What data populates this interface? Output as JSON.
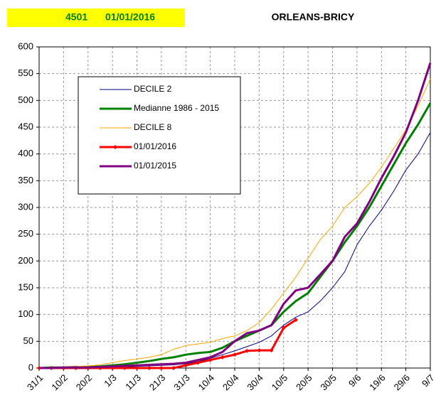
{
  "chart_data": {
    "type": "line",
    "station_code": "4501",
    "date": "01/01/2016",
    "title": "ORLEANS-BRICY",
    "categories": [
      "31/1",
      null,
      "10/2",
      null,
      "20/2",
      null,
      "1/3",
      null,
      "11/3",
      null,
      "21/3",
      null,
      "31/3",
      null,
      "10/4",
      null,
      "20/4",
      null,
      "30/4",
      null,
      "10/5",
      null,
      "20/5",
      null,
      "30/5",
      null,
      "9/6",
      null,
      "19/6",
      null,
      "29/6",
      null,
      "9/7"
    ],
    "series": [
      {
        "name": "DECILE 2",
        "color": "#000080",
        "linewidth": 1,
        "values": [
          0,
          0,
          0,
          1,
          1,
          1,
          2,
          2,
          3,
          4,
          5,
          6,
          8,
          12,
          18,
          25,
          32,
          40,
          48,
          60,
          80,
          95,
          105,
          125,
          150,
          180,
          230,
          265,
          295,
          330,
          370,
          400,
          440
        ]
      },
      {
        "name": "Medianne 1986 - 2015",
        "color": "#008000",
        "linewidth": 3,
        "values": [
          0,
          1,
          1,
          2,
          2,
          3,
          5,
          7,
          10,
          13,
          17,
          20,
          25,
          28,
          30,
          38,
          50,
          60,
          70,
          80,
          105,
          125,
          140,
          170,
          200,
          235,
          265,
          300,
          340,
          380,
          420,
          455,
          495
        ]
      },
      {
        "name": "DECILE 8",
        "color": "#FFA500",
        "linewidth": 1,
        "values": [
          0,
          1,
          2,
          3,
          4,
          6,
          10,
          14,
          17,
          20,
          25,
          35,
          42,
          45,
          48,
          55,
          60,
          70,
          85,
          110,
          140,
          170,
          205,
          240,
          265,
          300,
          320,
          345,
          375,
          410,
          445,
          490,
          540
        ]
      },
      {
        "name": "01/01/2016",
        "color": "#FF0000",
        "linewidth": 3,
        "marker": "diamond",
        "values": [
          0,
          0,
          0,
          0,
          0,
          0,
          0,
          0,
          0,
          0,
          0,
          0,
          5,
          10,
          15,
          20,
          25,
          32,
          33,
          33,
          75,
          90,
          null,
          null,
          null,
          null,
          null,
          null,
          null,
          null,
          null,
          null,
          null
        ]
      },
      {
        "name": "01/01/2015",
        "color": "#800080",
        "linewidth": 3,
        "values": [
          0,
          0,
          1,
          1,
          1,
          2,
          3,
          4,
          5,
          6,
          7,
          8,
          10,
          15,
          20,
          30,
          50,
          65,
          70,
          80,
          120,
          145,
          150,
          175,
          200,
          245,
          270,
          310,
          355,
          395,
          440,
          500,
          570
        ]
      }
    ],
    "ylim": [
      0,
      600
    ],
    "yticks": [
      0,
      50,
      100,
      150,
      200,
      250,
      300,
      350,
      400,
      450,
      500,
      550,
      600
    ],
    "grid": true,
    "legend": "upper left"
  }
}
